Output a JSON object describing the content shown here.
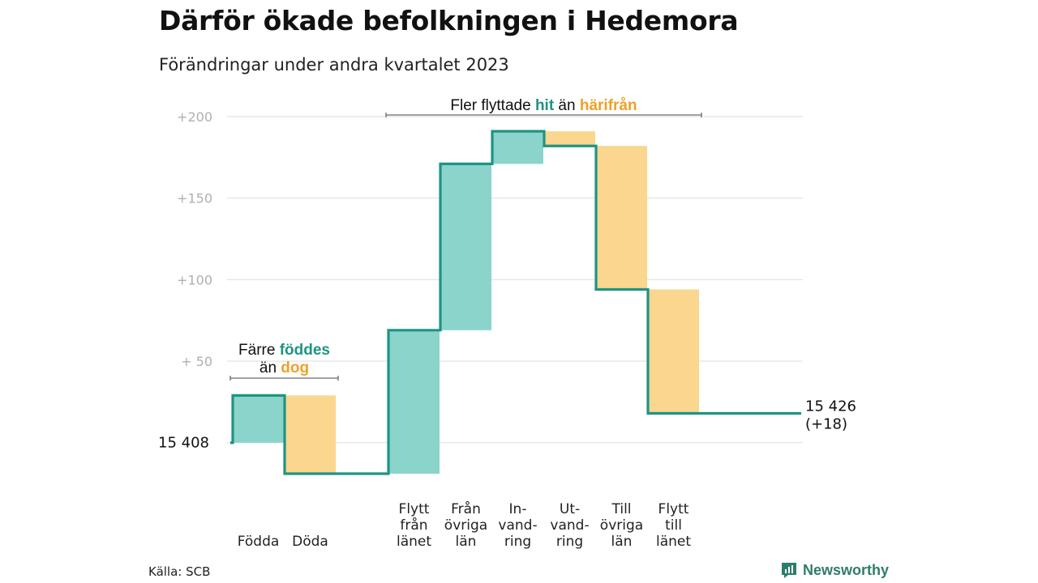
{
  "title": "Därför ökade befolkningen i Hedemora",
  "subtitle": "Förändringar under andra kvartalet 2023",
  "source": "Källa: SCB",
  "brand": "Newsworthy",
  "colors": {
    "inflow": "#8ad4cc",
    "outflow": "#fad68f",
    "line": "#1e9483",
    "grid": "#dddddd",
    "tick": "#b0b0b0",
    "hit": "#1e9483",
    "harifran": "#f0a028"
  },
  "chart_data": {
    "type": "waterfall",
    "start_value": 15408,
    "start_label": "15  408",
    "end_label": [
      "15 426",
      "(+18)"
    ],
    "y_ticks": [
      {
        "value": 200,
        "label": "+200"
      },
      {
        "value": 150,
        "label": "+150"
      },
      {
        "value": 100,
        "label": "+100"
      },
      {
        "value": 50,
        "label": "+  50"
      },
      {
        "value": 0,
        "label": ""
      }
    ],
    "ylim": [
      -19,
      200
    ],
    "steps": [
      {
        "label": [
          "Födda"
        ],
        "change": 29,
        "kind": "inflow"
      },
      {
        "label": [
          "Döda"
        ],
        "change": -48,
        "kind": "outflow"
      },
      {
        "label": [],
        "change": 0,
        "kind": "gap"
      },
      {
        "label": [
          "Flytt",
          "från",
          "länet"
        ],
        "change": 88,
        "kind": "inflow"
      },
      {
        "label": [
          "Från",
          "övriga",
          "län"
        ],
        "change": 102,
        "kind": "inflow"
      },
      {
        "label": [
          "In-",
          "vand-",
          "ring"
        ],
        "change": 20,
        "kind": "inflow"
      },
      {
        "label": [
          "Ut-",
          "vand-",
          "ring"
        ],
        "change": -9,
        "kind": "outflow"
      },
      {
        "label": [
          "Till",
          "övriga",
          "län"
        ],
        "change": -88,
        "kind": "outflow"
      },
      {
        "label": [
          "Flytt",
          "till",
          "länet"
        ],
        "change": -76,
        "kind": "outflow"
      }
    ],
    "annotations": [
      {
        "lines": [
          [
            {
              "text": "Färre ",
              "style": "plain"
            },
            {
              "text": "föddes",
              "style": "hit"
            }
          ],
          [
            {
              "text": "än ",
              "style": "plain"
            },
            {
              "text": "dog",
              "style": "harifran"
            }
          ]
        ],
        "from_step": 0,
        "to_step": 1,
        "position": "above-left-group"
      },
      {
        "lines": [
          [
            {
              "text": "Fler flyttade ",
              "style": "plain"
            },
            {
              "text": "hit",
              "style": "hit"
            },
            {
              "text": "  än ",
              "style": "plain"
            },
            {
              "text": "härifrån",
              "style": "harifran"
            }
          ]
        ],
        "from_step": 3,
        "to_step": 8,
        "position": "top"
      }
    ]
  }
}
